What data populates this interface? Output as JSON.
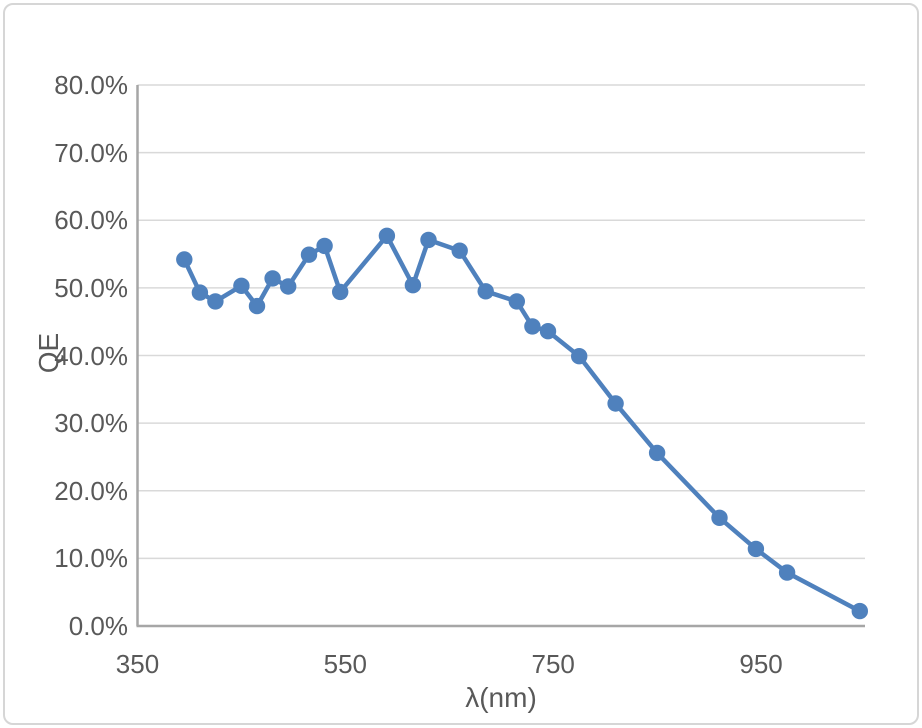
{
  "window": {
    "background": "#ffffff",
    "border_color": "#d6d6d6"
  },
  "chart_data": {
    "type": "line",
    "title": "",
    "xlabel": "λ(nm)",
    "ylabel": "QE",
    "legend": "none",
    "grid": true,
    "xlim": [
      350,
      1050
    ],
    "ylim_percent": [
      0,
      80
    ],
    "series": [
      {
        "name": "QE",
        "x": [
          395,
          410,
          425,
          450,
          465,
          480,
          495,
          515,
          530,
          545,
          590,
          615,
          630,
          660,
          685,
          715,
          730,
          745,
          775,
          810,
          850,
          910,
          945,
          975,
          1045
        ],
        "y_percent": [
          54.2,
          49.3,
          48.0,
          50.3,
          47.3,
          51.4,
          50.2,
          54.9,
          56.2,
          49.4,
          57.7,
          50.4,
          57.1,
          55.5,
          49.5,
          48.0,
          44.3,
          43.6,
          39.9,
          32.9,
          25.6,
          16.0,
          11.4,
          7.9,
          2.2
        ]
      }
    ],
    "x_ticks": [
      {
        "v": 350,
        "label": "350"
      },
      {
        "v": 550,
        "label": "550"
      },
      {
        "v": 750,
        "label": "750"
      },
      {
        "v": 950,
        "label": "950"
      }
    ],
    "y_ticks": [
      {
        "v": 0,
        "label": "0.0%"
      },
      {
        "v": 10,
        "label": "10.0%"
      },
      {
        "v": 20,
        "label": "20.0%"
      },
      {
        "v": 30,
        "label": "30.0%"
      },
      {
        "v": 40,
        "label": "40.0%"
      },
      {
        "v": 50,
        "label": "50.0%"
      },
      {
        "v": 60,
        "label": "60.0%"
      },
      {
        "v": 70,
        "label": "70.0%"
      },
      {
        "v": 80,
        "label": "80.0%"
      }
    ],
    "colors": {
      "line": "#4F81BD",
      "marker": "#4F81BD",
      "grid": "#D9D9D9",
      "axis": "#A6A6A6",
      "tick_text": "#595959"
    }
  }
}
